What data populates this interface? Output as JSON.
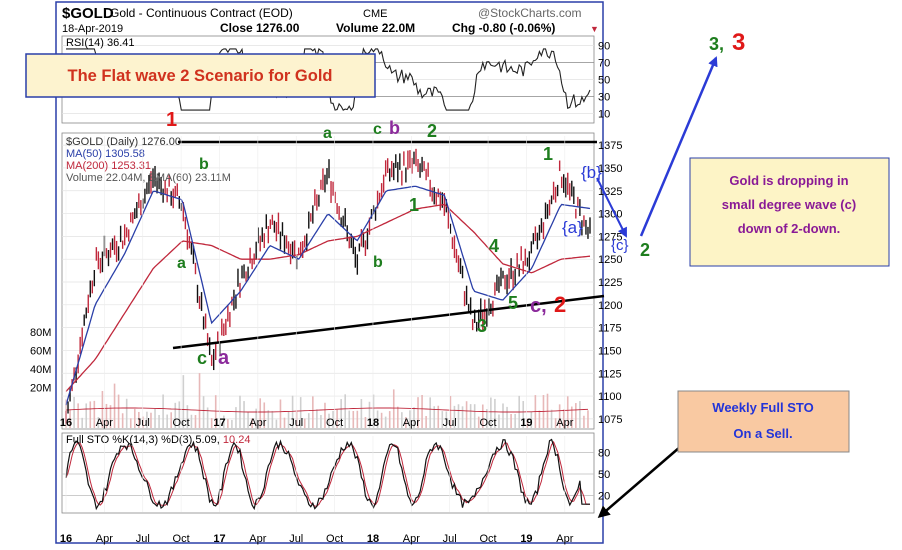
{
  "header": {
    "symbol": "$GOLD",
    "name": "Gold - Continuous Contract (EOD)",
    "exchange": "CME",
    "brand": "@StockCharts.com",
    "date": "18-Apr-2019",
    "close": "Close 1276.00",
    "volume": "Volume 22.0M",
    "chg": "Chg -0.80 (-0.06%)",
    "chg_arrow": "▼"
  },
  "title_box": "The Flat wave 2 Scenario for Gold",
  "rsi": {
    "label": "RSI(14) 36.41",
    "ticks": [
      "90",
      "70",
      "50",
      "30",
      "10"
    ]
  },
  "price": {
    "legend": [
      {
        "text": "$GOLD (Daily) 1276.00",
        "color": "#333333"
      },
      {
        "text": "MA(50) 1305.58",
        "color": "#2a3fa8"
      },
      {
        "text": "MA(200) 1253.31",
        "color": "#c0283c"
      },
      {
        "text": "Volume 22.04M, EMA(60) 23.11M",
        "color": "#555555"
      }
    ],
    "ticks": [
      "1375",
      "1350",
      "1325",
      "1300",
      "1275",
      "1250",
      "1225",
      "1200",
      "1175",
      "1150",
      "1125",
      "1100",
      "1075"
    ],
    "volume_ticks": [
      "80M",
      "60M",
      "40M",
      "20M"
    ]
  },
  "sto": {
    "label_a": "Full STO %K(14,3) %D(3) 5.09,",
    "label_b": "10.24",
    "ticks": [
      "80",
      "50",
      "20"
    ]
  },
  "x_axis": [
    "16",
    "Apr",
    "Jul",
    "Oct",
    "17",
    "Apr",
    "Jul",
    "Oct",
    "18",
    "Apr",
    "Jul",
    "Oct",
    "19",
    "Apr"
  ],
  "annotations": {
    "wave1_top": "1",
    "a_top": "a",
    "c_top": "c",
    "b_top": "b",
    "two_top": "2",
    "b_left": "b",
    "a_left": "a",
    "b_mid": "b",
    "one_mid": "1",
    "c_bottom": "c",
    "a_bottom": "a",
    "four": "4",
    "three": "3",
    "five": "5",
    "c_purple": "c,",
    "two_red": "2",
    "one_right": "1",
    "b_bracket": "{b}",
    "a_bracket": "{a}",
    "c_bracket": "{c}",
    "two_right": "2",
    "three_green": "3,",
    "three_red": "3"
  },
  "note_gold": {
    "line1": "Gold is dropping in",
    "line2": "small degree wave (c)",
    "line3": "down of 2-down."
  },
  "note_sto": {
    "line1": "Weekly Full STO",
    "line2": "On a Sell."
  },
  "colors": {
    "green_label": "#1e7d1e",
    "purple_label": "#8b2a9b",
    "red_label": "#e01818",
    "blue_label": "#2b3bd6",
    "title_text": "#d0321e",
    "title_box_bg": "#fdf3cf",
    "note_bg": "#fdf4c6",
    "note_text": "#8a1a96",
    "sto_box_bg": "#f9c9a2",
    "sto_box_text": "#2334d8",
    "ma50": "#2a3fa8",
    "ma200": "#c0283c"
  },
  "chart_data": {
    "type": "line",
    "title": "$GOLD Gold - Continuous Contract (EOD)",
    "x_tick_labels": [
      "16",
      "Apr",
      "Jul",
      "Oct",
      "17",
      "Apr",
      "Jul",
      "Oct",
      "18",
      "Apr",
      "Jul",
      "Oct",
      "19",
      "Apr"
    ],
    "ylim": [
      1065,
      1385
    ],
    "series": [
      {
        "name": "$GOLD (Daily)",
        "x": [
          "Jan 2016",
          "Mar 2016",
          "May 2016",
          "Jul 2016",
          "Sep 2016",
          "Dec 2016",
          "Feb 2017",
          "Apr 2017",
          "Jun 2017",
          "Sep 2017",
          "Dec 2017",
          "Jan 2018",
          "Mar 2018",
          "May 2018",
          "Aug 2018",
          "Oct 2018",
          "Dec 2018",
          "Feb 2019",
          "Apr 2019"
        ],
        "values": [
          1075,
          1245,
          1275,
          1340,
          1310,
          1135,
          1230,
          1290,
          1255,
          1345,
          1245,
          1345,
          1355,
          1310,
          1175,
          1225,
          1255,
          1345,
          1276
        ]
      },
      {
        "name": "MA(50)",
        "values": [
          1090,
          1200,
          1255,
          1325,
          1315,
          1180,
          1215,
          1265,
          1250,
          1300,
          1270,
          1325,
          1330,
          1320,
          1215,
          1205,
          1240,
          1310,
          1305.58
        ]
      },
      {
        "name": "MA(200)",
        "values": [
          1105,
          1140,
          1190,
          1240,
          1270,
          1265,
          1250,
          1250,
          1255,
          1270,
          1275,
          1290,
          1305,
          1310,
          1280,
          1245,
          1235,
          1250,
          1253.31
        ]
      }
    ]
  }
}
